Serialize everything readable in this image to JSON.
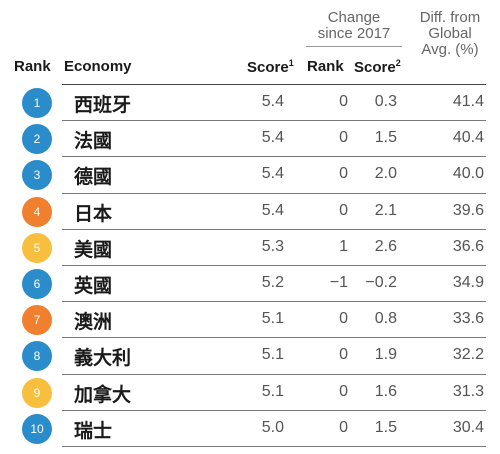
{
  "header": {
    "rank": "Rank",
    "economy": "Economy",
    "score": "Score",
    "score_sup": "1",
    "change_line1": "Change",
    "change_line2": "since 2017",
    "change_rank": "Rank",
    "change_score": "Score",
    "change_score_sup": "2",
    "diff_line1": "Diff. from",
    "diff_line2": "Global",
    "diff_line3": "Avg. (%)"
  },
  "colors": {
    "blue": "#2a8ccb",
    "orange": "#f07f2e",
    "yellow": "#f8bf3f"
  },
  "chart_data": {
    "type": "table",
    "columns": [
      "Rank",
      "Economy",
      "Score",
      "Change since 2017 Rank",
      "Change since 2017 Score",
      "Diff. from Global Avg. (%)"
    ],
    "rows": [
      {
        "rank": "1",
        "economy": "西班牙",
        "score": "5.4",
        "rank_change": "0",
        "score_change": "0.3",
        "diff": "41.4",
        "badge": "blue"
      },
      {
        "rank": "2",
        "economy": "法國",
        "score": "5.4",
        "rank_change": "0",
        "score_change": "1.5",
        "diff": "40.4",
        "badge": "blue"
      },
      {
        "rank": "3",
        "economy": "德國",
        "score": "5.4",
        "rank_change": "0",
        "score_change": "2.0",
        "diff": "40.0",
        "badge": "blue"
      },
      {
        "rank": "4",
        "economy": "日本",
        "score": "5.4",
        "rank_change": "0",
        "score_change": "2.1",
        "diff": "39.6",
        "badge": "orange"
      },
      {
        "rank": "5",
        "economy": "美國",
        "score": "5.3",
        "rank_change": "1",
        "score_change": "2.6",
        "diff": "36.6",
        "badge": "yellow"
      },
      {
        "rank": "6",
        "economy": "英國",
        "score": "5.2",
        "rank_change": "−1",
        "score_change": "−0.2",
        "diff": "34.9",
        "badge": "blue"
      },
      {
        "rank": "7",
        "economy": "澳洲",
        "score": "5.1",
        "rank_change": "0",
        "score_change": "0.8",
        "diff": "33.6",
        "badge": "orange"
      },
      {
        "rank": "8",
        "economy": "義大利",
        "score": "5.1",
        "rank_change": "0",
        "score_change": "1.9",
        "diff": "32.2",
        "badge": "blue"
      },
      {
        "rank": "9",
        "economy": "加拿大",
        "score": "5.1",
        "rank_change": "0",
        "score_change": "1.6",
        "diff": "31.3",
        "badge": "yellow"
      },
      {
        "rank": "10",
        "economy": "瑞士",
        "score": "5.0",
        "rank_change": "0",
        "score_change": "1.5",
        "diff": "30.4",
        "badge": "blue"
      }
    ]
  }
}
